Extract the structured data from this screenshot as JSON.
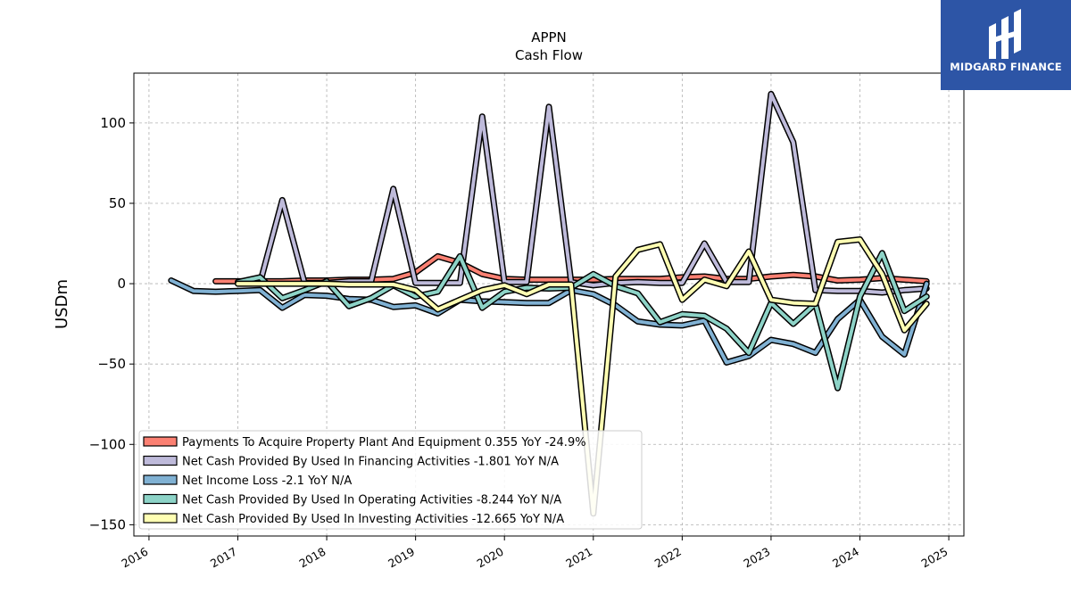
{
  "brand": {
    "name": "MIDGARD FINANCE",
    "background": "#2d55a6"
  },
  "chart_data": {
    "type": "line",
    "title": "APPN",
    "subtitle": "Cash Flow",
    "xlabel": "",
    "ylabel": "USDm",
    "ylim": [
      -157,
      131
    ],
    "xlim": [
      2015.83,
      2025.17
    ],
    "yticks": [
      -150,
      -100,
      -50,
      0,
      50,
      100
    ],
    "yticklabels": [
      "−150",
      "−100",
      "−50",
      "0",
      "50",
      "100"
    ],
    "xticks": [
      2016,
      2017,
      2018,
      2019,
      2020,
      2021,
      2022,
      2023,
      2024,
      2025
    ],
    "xticklabels": [
      "2016",
      "2017",
      "2018",
      "2019",
      "2020",
      "2021",
      "2022",
      "2023",
      "2024",
      "2025"
    ],
    "grid": true,
    "legend_position": "lower-left",
    "series": [
      {
        "name": "Payments To Acquire Property Plant And Equipment  0.355 YoY -24.9%",
        "color": "#fb8072",
        "x": [
          2016.75,
          2017.0,
          2017.25,
          2017.5,
          2017.75,
          2018.0,
          2018.25,
          2018.5,
          2018.75,
          2019.0,
          2019.25,
          2019.5,
          2019.75,
          2020.0,
          2020.25,
          2020.5,
          2020.75,
          2021.0,
          2021.25,
          2021.5,
          2021.75,
          2022.0,
          2022.25,
          2022.5,
          2022.75,
          2023.0,
          2023.25,
          2023.5,
          2023.75,
          2024.0,
          2024.25,
          2024.5,
          2024.75
        ],
        "y": [
          1.5,
          1.5,
          1.5,
          1.5,
          2.0,
          2.0,
          2.5,
          2.5,
          3.0,
          7.0,
          17.0,
          13.0,
          6.0,
          3.0,
          2.5,
          2.5,
          2.5,
          2.5,
          3.0,
          3.0,
          3.0,
          4.0,
          4.5,
          3.0,
          3.0,
          4.5,
          5.5,
          4.5,
          2.0,
          2.5,
          3.5,
          2.5,
          1.5
        ]
      },
      {
        "name": "Net Cash Provided By Used In Financing Activities  -1.801 YoY N/A",
        "color": "#bebada",
        "x": [
          2017.0,
          2017.25,
          2017.5,
          2017.75,
          2018.0,
          2018.25,
          2018.5,
          2018.75,
          2019.0,
          2019.25,
          2019.5,
          2019.75,
          2020.0,
          2020.25,
          2020.5,
          2020.75,
          2021.0,
          2021.25,
          2021.5,
          2021.75,
          2022.0,
          2022.25,
          2022.5,
          2022.75,
          2023.0,
          2023.25,
          2023.5,
          2023.75,
          2024.0,
          2024.25,
          2024.5,
          2024.75
        ],
        "y": [
          0.5,
          0.5,
          52.0,
          0.5,
          0.5,
          1.5,
          1.5,
          59.0,
          0.5,
          0.5,
          0.5,
          104.0,
          1.0,
          1.0,
          110.0,
          1.0,
          -1.0,
          0.5,
          1.0,
          0.5,
          0.5,
          25.0,
          1.0,
          1.0,
          118.0,
          88.0,
          -4.0,
          -4.5,
          -4.5,
          -5.5,
          -4.0,
          -3.0
        ]
      },
      {
        "name": "Net Income Loss  -2.1 YoY N/A",
        "color": "#80b1d3",
        "x": [
          2016.25,
          2016.5,
          2016.75,
          2017.0,
          2017.25,
          2017.5,
          2017.75,
          2018.0,
          2018.25,
          2018.5,
          2018.75,
          2019.0,
          2019.25,
          2019.5,
          2019.75,
          2020.0,
          2020.25,
          2020.5,
          2020.75,
          2021.0,
          2021.25,
          2021.5,
          2021.75,
          2022.0,
          2022.25,
          2022.5,
          2022.75,
          2023.0,
          2023.25,
          2023.5,
          2023.75,
          2024.0,
          2024.25,
          2024.5,
          2024.75
        ],
        "y": [
          2.0,
          -4.5,
          -5.0,
          -4.5,
          -4.0,
          -15.0,
          -7.0,
          -7.5,
          -9.5,
          -10.0,
          -14.5,
          -13.5,
          -18.5,
          -10.0,
          -11.0,
          -11.5,
          -12.0,
          -12.0,
          -4.0,
          -6.5,
          -13.5,
          -23.5,
          -25.5,
          -26.0,
          -23.0,
          -49.0,
          -45.0,
          -35.0,
          -37.5,
          -43.0,
          -22.0,
          -10.0,
          -33.0,
          -44.0,
          0.0
        ]
      },
      {
        "name": "Net Cash Provided By Used In Operating Activities  -8.244 YoY N/A",
        "color": "#8dd3c7",
        "x": [
          2017.0,
          2017.25,
          2017.5,
          2017.75,
          2018.0,
          2018.25,
          2018.5,
          2018.75,
          2019.0,
          2019.25,
          2019.5,
          2019.75,
          2020.0,
          2020.25,
          2020.5,
          2020.75,
          2021.0,
          2021.25,
          2021.5,
          2021.75,
          2022.0,
          2022.25,
          2022.5,
          2022.75,
          2023.0,
          2023.25,
          2023.5,
          2023.75,
          2024.0,
          2024.25,
          2024.5,
          2024.75
        ],
        "y": [
          1.0,
          4.0,
          -9.0,
          -4.0,
          1.5,
          -14.0,
          -9.0,
          -1.0,
          -8.0,
          -5.0,
          17.0,
          -15.0,
          -5.0,
          -2.5,
          -3.0,
          -2.5,
          6.0,
          -1.5,
          -6.0,
          -24.0,
          -19.0,
          -20.0,
          -28.0,
          -43.0,
          -12.0,
          -25.0,
          -12.5,
          -65.0,
          -8.0,
          19.0,
          -17.0,
          -8.0
        ]
      },
      {
        "name": "Net Cash Provided By Used In Investing Activities  -12.665 YoY N/A",
        "color": "#ffffb3",
        "x": [
          2017.0,
          2017.25,
          2017.5,
          2017.75,
          2018.0,
          2018.25,
          2018.5,
          2018.75,
          2019.0,
          2019.25,
          2019.5,
          2019.75,
          2020.0,
          2020.25,
          2020.5,
          2020.75,
          2021.0,
          2021.25,
          2021.5,
          2021.75,
          2022.0,
          2022.25,
          2022.5,
          2022.75,
          2023.0,
          2023.25,
          2023.5,
          2023.75,
          2024.0,
          2024.25,
          2024.5,
          2024.75
        ],
        "y": [
          0.0,
          0.0,
          0.0,
          0.0,
          0.0,
          -0.5,
          -0.5,
          -0.5,
          -4.0,
          -16.0,
          -10.0,
          -4.0,
          -1.0,
          -6.5,
          -0.5,
          -0.5,
          -143.0,
          4.5,
          21.0,
          24.5,
          -10.0,
          2.5,
          -1.5,
          20.0,
          -10.0,
          -12.0,
          -12.5,
          26.0,
          27.5,
          6.0,
          -29.0,
          -12.5
        ]
      }
    ]
  }
}
